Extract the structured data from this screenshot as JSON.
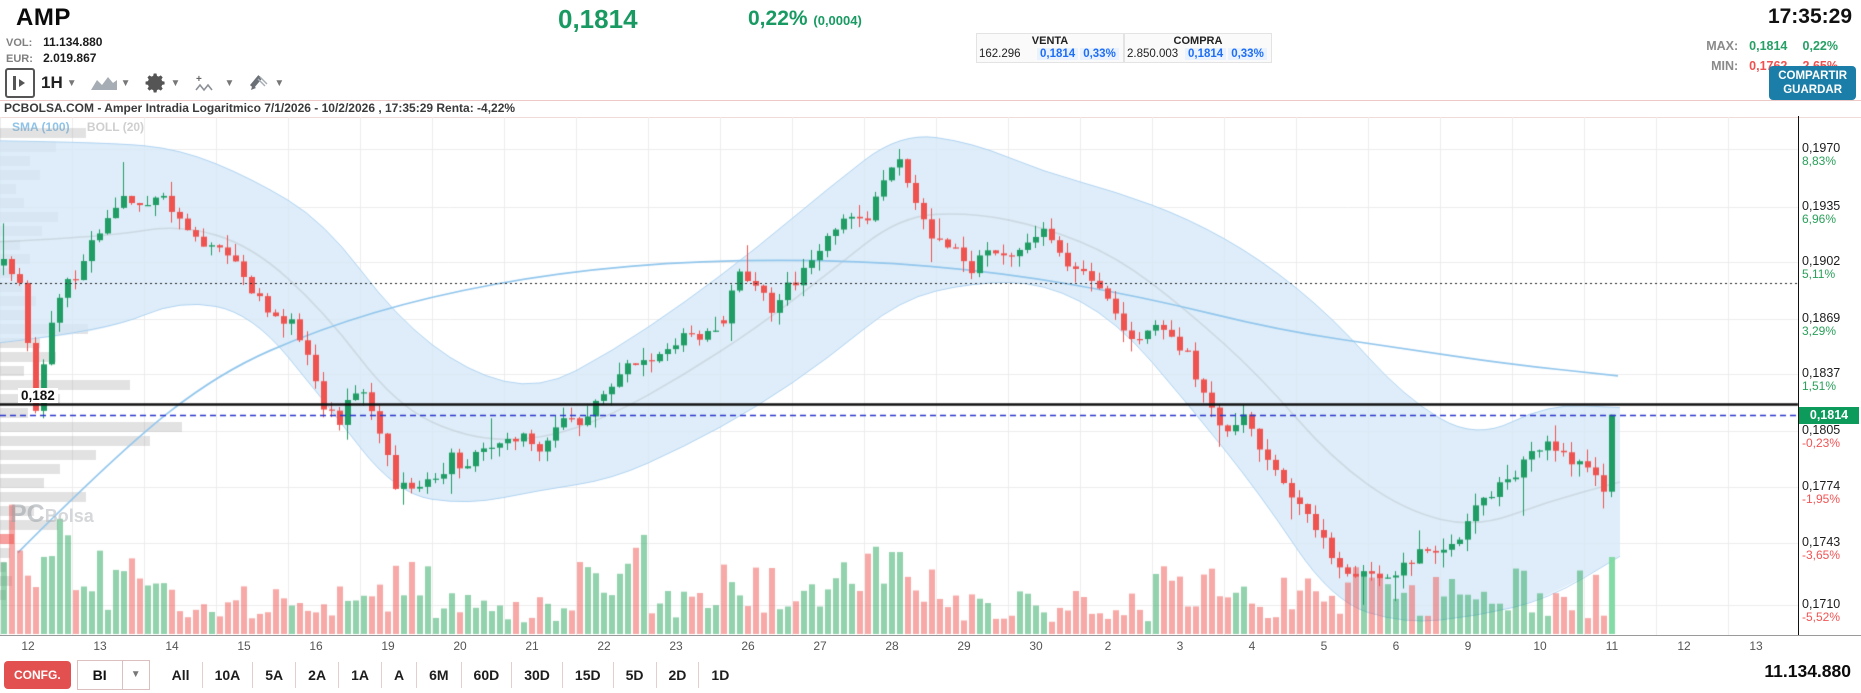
{
  "header": {
    "symbol": "AMP",
    "price": "0,1814",
    "change_pct": "0,22%",
    "change_abs": "(0,0004)",
    "time": "17:35:29",
    "vol_label": "VOL:",
    "vol_value": "11.134.880",
    "eur_label": "EUR:",
    "eur_value": "2.019.867",
    "venta": {
      "title": "VENTA",
      "qty": "162.296",
      "price": "0,1814",
      "pct": "0,33%"
    },
    "compra": {
      "title": "COMPRA",
      "qty": "2.850.003",
      "price": "0,1814",
      "pct": "0,33%"
    },
    "max_label": "MAX:",
    "max_price": "0,1814",
    "max_pct": "0,22%",
    "min_label": "MIN:",
    "min_price": "0,1762",
    "min_pct": "-2,65%",
    "share_btn": "COMPARTIR",
    "save_btn": "GUARDAR"
  },
  "toolbar": {
    "interval": "1H"
  },
  "chart_title": "PCBOLSA.COM - Amper Intradia Logaritmico 7/1/2026 - 10/2/2026 , 17:35:29 Renta: -4,22%",
  "legend": {
    "sma": "SMA (100)",
    "boll": "BOLL (20)"
  },
  "watermark": {
    "part1": "PC",
    "part2": "Bolsa"
  },
  "bottom_toolbar": {
    "config": "CONFG.",
    "mode": "BI",
    "ranges": [
      "All",
      "10A",
      "5A",
      "2A",
      "1A",
      "A",
      "6M",
      "60D",
      "30D",
      "15D",
      "5D",
      "2D",
      "1D"
    ]
  },
  "footer_volume": "11.134.880",
  "chart_data": {
    "type": "candlestick",
    "interval": "1H",
    "scale": "log",
    "title": "PCBOLSA.COM - Amper Intradia Logaritmico 7/1/2026 - 10/2/2026 , 17:35:29 Renta: -4,22%",
    "y_axis": [
      {
        "value": 0.197,
        "price": "0,1970",
        "pct": "8,83%",
        "dir": "up"
      },
      {
        "value": 0.1935,
        "price": "0,1935",
        "pct": "6,96%",
        "dir": "up"
      },
      {
        "value": 0.1902,
        "price": "0,1902",
        "pct": "5,11%",
        "dir": "up"
      },
      {
        "value": 0.1869,
        "price": "0,1869",
        "pct": "3,29%",
        "dir": "up"
      },
      {
        "value": 0.1837,
        "price": "0,1837",
        "pct": "1,51%",
        "dir": "up"
      },
      {
        "value": 0.1805,
        "price": "0,1805",
        "pct": "-0,23%",
        "dir": "down"
      },
      {
        "value": 0.1774,
        "price": "0,1774",
        "pct": "-1,95%",
        "dir": "down"
      },
      {
        "value": 0.1743,
        "price": "0,1743",
        "pct": "-3,65%",
        "dir": "down"
      },
      {
        "value": 0.171,
        "price": "0,1710",
        "pct": "-5,52%",
        "dir": "down"
      }
    ],
    "x_labels": [
      "12",
      "13",
      "14",
      "15",
      "16",
      "19",
      "20",
      "21",
      "22",
      "23",
      "26",
      "27",
      "28",
      "29",
      "30",
      "2",
      "3",
      "4",
      "5",
      "6",
      "9",
      "10",
      "11",
      "12",
      "13"
    ],
    "levels": {
      "alert": {
        "value": 0.182,
        "label": "0,182"
      },
      "dotted": {
        "value": 0.189
      },
      "last": {
        "value": 0.1814,
        "label": "0,1814"
      }
    },
    "days": [
      {
        "label": "12",
        "path": [
          0.19,
          0.189,
          0.1818,
          0.1868,
          0.1892
        ],
        "h": 0.1925,
        "l": 0.1812,
        "vol": 1.0
      },
      {
        "label": "13",
        "path": [
          0.1892,
          0.1912,
          0.193,
          0.1942,
          0.1936
        ],
        "h": 0.1962,
        "l": 0.1886,
        "vol": 0.5
      },
      {
        "label": "14",
        "path": [
          0.1936,
          0.1942,
          0.1928,
          0.1916,
          0.1912
        ],
        "h": 0.195,
        "l": 0.1906,
        "vol": 0.3
      },
      {
        "label": "15",
        "path": [
          0.1912,
          0.19,
          0.1885,
          0.1872,
          0.1866
        ],
        "h": 0.1918,
        "l": 0.1858,
        "vol": 0.28
      },
      {
        "label": "16",
        "path": [
          0.1866,
          0.185,
          0.182,
          0.1812,
          0.1826
        ],
        "h": 0.1872,
        "l": 0.18,
        "vol": 0.3
      },
      {
        "label": "19",
        "path": [
          0.1826,
          0.18,
          0.1775,
          0.1772,
          0.1778
        ],
        "h": 0.1832,
        "l": 0.1764,
        "vol": 0.45
      },
      {
        "label": "20",
        "path": [
          0.1778,
          0.179,
          0.1784,
          0.1795,
          0.1798
        ],
        "h": 0.1812,
        "l": 0.177,
        "vol": 0.25
      },
      {
        "label": "21",
        "path": [
          0.1798,
          0.1802,
          0.1796,
          0.1806,
          0.1812
        ],
        "h": 0.1818,
        "l": 0.1788,
        "vol": 0.22
      },
      {
        "label": "22",
        "path": [
          0.1812,
          0.182,
          0.1832,
          0.184,
          0.1845
        ],
        "h": 0.1852,
        "l": 0.1802,
        "vol": 0.6
      },
      {
        "label": "23",
        "path": [
          0.1845,
          0.185,
          0.1858,
          0.1856,
          0.1862
        ],
        "h": 0.187,
        "l": 0.1838,
        "vol": 0.28
      },
      {
        "label": "26",
        "path": [
          0.1868,
          0.1895,
          0.1885,
          0.1875,
          0.189
        ],
        "h": 0.1912,
        "l": 0.1856,
        "vol": 0.45
      },
      {
        "label": "27",
        "path": [
          0.189,
          0.1905,
          0.1916,
          0.1926,
          0.1928
        ],
        "h": 0.1936,
        "l": 0.1882,
        "vol": 0.5
      },
      {
        "label": "28",
        "path": [
          0.1928,
          0.1952,
          0.1965,
          0.1938,
          0.1916
        ],
        "h": 0.197,
        "l": 0.1902,
        "vol": 0.55
      },
      {
        "label": "29",
        "path": [
          0.1916,
          0.1908,
          0.1898,
          0.1908,
          0.1906
        ],
        "h": 0.1928,
        "l": 0.1892,
        "vol": 0.3
      },
      {
        "label": "30",
        "path": [
          0.1906,
          0.1916,
          0.192,
          0.1904,
          0.1898
        ],
        "h": 0.1928,
        "l": 0.189,
        "vol": 0.28
      },
      {
        "label": "2",
        "path": [
          0.1898,
          0.1888,
          0.1872,
          0.186,
          0.1862
        ],
        "h": 0.1903,
        "l": 0.185,
        "vol": 0.3
      },
      {
        "label": "3",
        "path": [
          0.1862,
          0.1858,
          0.1848,
          0.1826,
          0.1808
        ],
        "h": 0.1868,
        "l": 0.1796,
        "vol": 0.45
      },
      {
        "label": "4",
        "path": [
          0.1808,
          0.1812,
          0.1798,
          0.178,
          0.1768
        ],
        "h": 0.182,
        "l": 0.1756,
        "vol": 0.35
      },
      {
        "label": "5",
        "path": [
          0.1768,
          0.1752,
          0.1735,
          0.1725,
          0.1728
        ],
        "h": 0.1772,
        "l": 0.171,
        "vol": 0.4
      },
      {
        "label": "6",
        "path": [
          0.1728,
          0.1722,
          0.173,
          0.1742,
          0.1738
        ],
        "h": 0.175,
        "l": 0.1712,
        "vol": 0.35
      },
      {
        "label": "9",
        "path": [
          0.1738,
          0.1748,
          0.1762,
          0.1772,
          0.1778
        ],
        "h": 0.1786,
        "l": 0.173,
        "vol": 0.35
      },
      {
        "label": "10",
        "path": [
          0.1778,
          0.1795,
          0.18,
          0.179,
          0.1788
        ],
        "h": 0.1808,
        "l": 0.1758,
        "vol": 0.4
      },
      {
        "label": "11",
        "path": [
          0.1788,
          0.178,
          0.1772,
          0.1814
        ],
        "n": 4,
        "h": 0.1814,
        "l": 0.1762,
        "vol": 0.35,
        "pale_last": true
      }
    ],
    "bollinger": [
      [
        0.1975,
        0.1855
      ],
      [
        0.1974,
        0.1862
      ],
      [
        0.197,
        0.188
      ],
      [
        0.1952,
        0.1872
      ],
      [
        0.1926,
        0.1822
      ],
      [
        0.187,
        0.177
      ],
      [
        0.1838,
        0.1764
      ],
      [
        0.1828,
        0.1772
      ],
      [
        0.185,
        0.1778
      ],
      [
        0.1878,
        0.1796
      ],
      [
        0.191,
        0.1818
      ],
      [
        0.1946,
        0.1846
      ],
      [
        0.198,
        0.188
      ],
      [
        0.1974,
        0.189
      ],
      [
        0.1956,
        0.189
      ],
      [
        0.1944,
        0.1868
      ],
      [
        0.1928,
        0.182
      ],
      [
        0.1904,
        0.177
      ],
      [
        0.187,
        0.1712
      ],
      [
        0.1824,
        0.17
      ],
      [
        0.18,
        0.1704
      ],
      [
        0.182,
        0.1713
      ],
      [
        0.1818,
        0.1736
      ]
    ],
    "sma100": [
      [
        18,
        0.1738
      ],
      [
        120,
        0.1794
      ],
      [
        220,
        0.1838
      ],
      [
        320,
        0.1863
      ],
      [
        430,
        0.1882
      ],
      [
        560,
        0.1896
      ],
      [
        700,
        0.1903
      ],
      [
        860,
        0.1903
      ],
      [
        1000,
        0.1896
      ],
      [
        1140,
        0.1882
      ],
      [
        1280,
        0.1862
      ],
      [
        1400,
        0.1852
      ],
      [
        1505,
        0.1843
      ],
      [
        1618,
        0.1836
      ]
    ],
    "volume_profile": [
      86,
      56,
      30,
      40,
      16,
      24,
      58,
      42,
      20,
      30,
      14,
      22,
      36,
      26,
      88,
      40,
      56,
      24,
      130,
      60,
      28,
      182,
      150,
      96,
      60,
      44,
      86,
      34,
      58,
      14,
      10,
      6,
      12,
      6
    ],
    "volume_profile_red_row": 29,
    "colors": {
      "up": "#1f9d64",
      "down": "#ef5350",
      "band": "rgba(213,232,247,0.78)",
      "band_edge": "rgba(165,205,238,0.85)",
      "sma": "#92c6ec",
      "mid": "rgba(110,110,110,0.16)",
      "vol_up": "rgba(38,166,91,0.5)",
      "vol_down": "rgba(239,83,80,0.5)",
      "vol_last": "rgba(126,217,160,0.95)",
      "grid": "#ececec",
      "dashed": "#2a35cc",
      "profile": "rgba(160,160,160,0.30)",
      "profile_red": "rgba(239,83,80,0.55)"
    }
  }
}
